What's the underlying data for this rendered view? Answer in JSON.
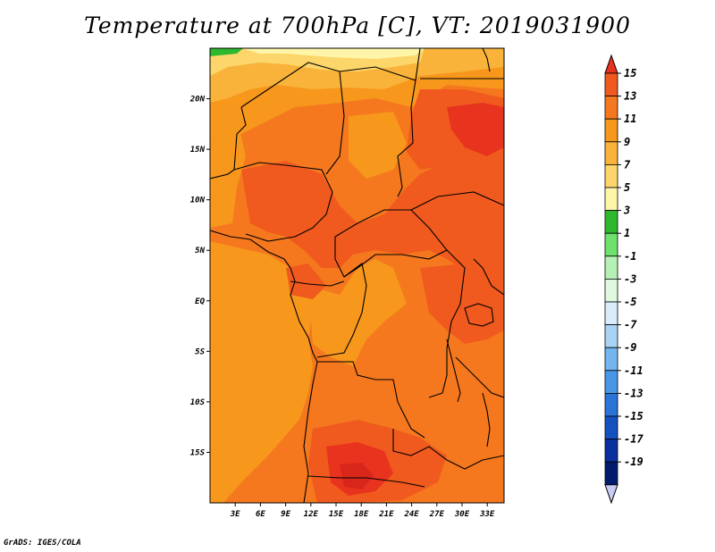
{
  "title": "Temperature at 700hPa [C], VT: 2019031900",
  "credit": "GrADS: IGES/COLA",
  "map": {
    "lon_range": [
      0,
      35
    ],
    "lat_range": [
      -20,
      25
    ],
    "lat_ticks": [
      {
        "value": 20,
        "label": "20N"
      },
      {
        "value": 15,
        "label": "15N"
      },
      {
        "value": 10,
        "label": "10N"
      },
      {
        "value": 5,
        "label": "5N"
      },
      {
        "value": 0,
        "label": "EQ"
      },
      {
        "value": -5,
        "label": "5S"
      },
      {
        "value": -10,
        "label": "10S"
      },
      {
        "value": -15,
        "label": "15S"
      }
    ],
    "lon_ticks": [
      {
        "value": 3,
        "label": "3E"
      },
      {
        "value": 6,
        "label": "6E"
      },
      {
        "value": 9,
        "label": "9E"
      },
      {
        "value": 12,
        "label": "12E"
      },
      {
        "value": 15,
        "label": "15E"
      },
      {
        "value": 18,
        "label": "18E"
      },
      {
        "value": 21,
        "label": "21E"
      },
      {
        "value": 24,
        "label": "24E"
      },
      {
        "value": 27,
        "label": "27E"
      },
      {
        "value": 30,
        "label": "30E"
      },
      {
        "value": 33,
        "label": "33E"
      }
    ]
  },
  "colorbar": {
    "levels": [
      15,
      13,
      11,
      9,
      7,
      5,
      3,
      1,
      -1,
      -3,
      -5,
      -7,
      -9,
      -11,
      -13,
      -15,
      -17,
      -19
    ],
    "colors": [
      "#e8331f",
      "#f05a1e",
      "#f5781e",
      "#f7971c",
      "#f9b33a",
      "#fcd66a",
      "#fff5a8",
      "#2eb82e",
      "#6ee06e",
      "#b5f0b5",
      "#e0f8e0",
      "#d9ecfb",
      "#a9d3f5",
      "#74b5ee",
      "#4a96e6",
      "#2a74d8",
      "#1450c0",
      "#0a2f9e",
      "#041a6e",
      "#c8ccf4"
    ]
  }
}
